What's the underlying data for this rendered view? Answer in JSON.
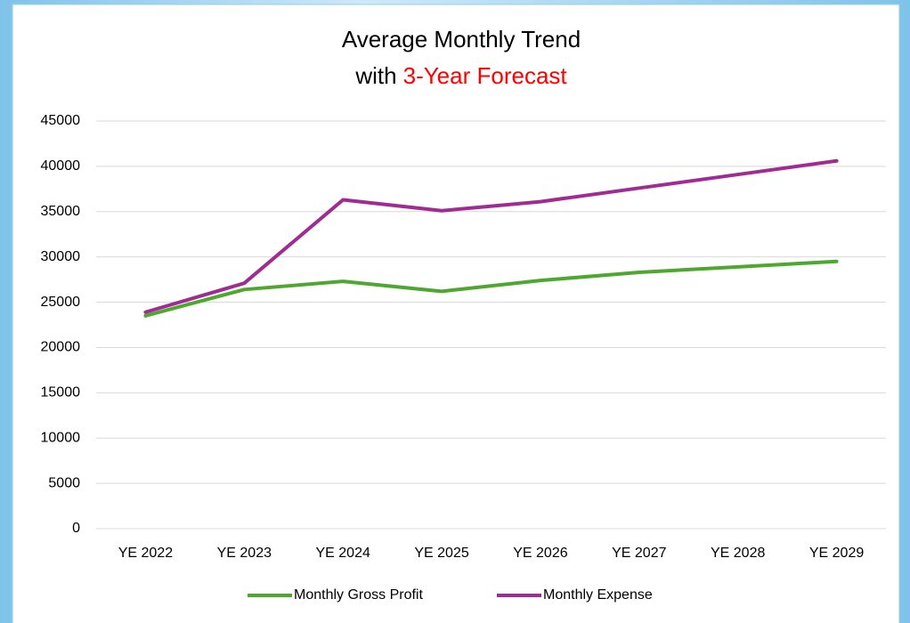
{
  "chart_data": {
    "type": "line",
    "title": "Average Monthly Trend",
    "subtitle": [
      {
        "text": "with",
        "color": "#000000"
      },
      {
        "text": "3-Year Forecast",
        "color": "#ff0000"
      }
    ],
    "categories": [
      "YE 2022",
      "YE 2023",
      "YE 2024",
      "YE 2025",
      "YE 2026",
      "YE 2027",
      "YE 2028",
      "YE 2029"
    ],
    "series": [
      {
        "name": "Monthly Gross Profit",
        "color": "#4ea72e",
        "values": [
          23500,
          26400,
          27300,
          26200,
          27400,
          28300,
          28900,
          29500
        ]
      },
      {
        "name": "Monthly Expense",
        "color": "#a02b93",
        "values": [
          23900,
          27100,
          36300,
          35100,
          36100,
          37600,
          39100,
          40600
        ]
      }
    ],
    "ylim": [
      0,
      45000
    ],
    "yticks": [
      0,
      5000,
      10000,
      15000,
      20000,
      25000,
      30000,
      35000,
      40000,
      45000
    ],
    "grid": true,
    "legend": "bottom"
  }
}
